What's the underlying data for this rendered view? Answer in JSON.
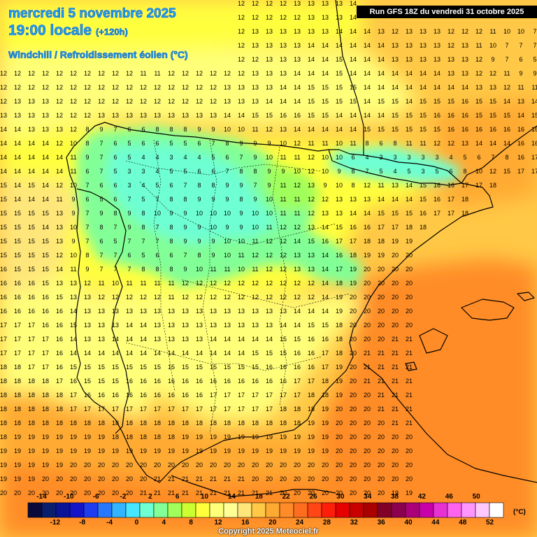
{
  "header": {
    "date": "mercredi 5 novembre 2025",
    "time": "19:00 locale",
    "forecast_horizon": "(+120h)",
    "parameter": "Windchill / Refroidissement éolien (°C)"
  },
  "run_info": "Run GFS 18Z du vendredi 31 octobre 2025",
  "copyright": "Copyright 2025 Meteociel.fr",
  "legend": {
    "unit": "(°C)",
    "top_labels": [
      "-14",
      "-10",
      "-6",
      "-2",
      "2",
      "6",
      "10",
      "14",
      "18",
      "22",
      "26",
      "30",
      "34",
      "38",
      "42",
      "46",
      "50"
    ],
    "bottom_labels": [
      "-12",
      "-8",
      "-4",
      "0",
      "4",
      "8",
      "12",
      "16",
      "20",
      "24",
      "28",
      "32",
      "36",
      "40",
      "44",
      "48",
      "52"
    ],
    "colors": [
      "#0a0a3c",
      "#0a1e6e",
      "#0a1496",
      "#1414c8",
      "#1e3cf0",
      "#2878ff",
      "#32b4ff",
      "#46e6ff",
      "#6effd2",
      "#82ff96",
      "#a0ff5a",
      "#ccff32",
      "#ffff3c",
      "#ffff7a",
      "#ffff96",
      "#ffe67a",
      "#ffc846",
      "#ffaa32",
      "#ff8c28",
      "#ff6e1e",
      "#ff4614",
      "#ff1e0a",
      "#e60000",
      "#c80000",
      "#aa0000",
      "#820028",
      "#8c0050",
      "#aa007a",
      "#c800aa",
      "#e632d2",
      "#ff64f0",
      "#ff96ff",
      "#ffc8ff",
      "#ffffff"
    ]
  },
  "value_rows": [
    "9 9 9 10 10 10 10 11 11 11 10 10 10 10 11 11 12 12 12 12 12 13 13 13 13 14 13 13 14 14 14 13 14 14 13 12 12 12 12 11 11 11 11 13",
    "10 10 10 10 10 10 11 11 11 11 10 10 10 10 11 12 12 12 12 12 12 12 13 13 13 14 14 14 14 12 13 14 14 12 12 11 11 11 9 8 10 9 9",
    "10 10 10 10 11 11 11 11 11 11 11 11 11 11 11 12 12 12 13 13 13 13 13 13 14 14 14 13 12 13 13 13 12 12 12 11 10 10 7 8 7 7",
    "11 11 11 10 11 11 11 11 11 11 11 11 11 11 11 12 12 12 13 13 13 13 14 14 14 14 14 14 13 13 13 13 12 13 11 10 7 7 7 8 7 7",
    "11 11 11 11 11 11 11 12 11 11 11 11 11 11 11 11 12 12 12 13 13 13 14 14 15 14 14 14 13 13 13 13 13 13 12 9 7 6 5 8",
    "12 12 12 12 12 12 12 12 12 12 11 11 12 12 12 12 12 12 13 13 13 14 14 14 15 14 14 14 14 14 14 14 13 13 12 12 11 9 9",
    "12 12 12 12 12 12 12 12 12 12 12 12 12 12 12 12 13 13 13 13 14 14 15 15 15 15 14 14 14 14 14 14 14 14 13 13 12 11 11 12",
    "12 13 13 13 12 12 12 12 12 12 12 12 12 12 12 12 13 13 13 14 14 14 15 15 15 15 14 15 15 14 15 15 15 16 15 15 14 13 14 13",
    "13 13 13 13 12 12 12 13 13 13 13 13 13 13 13 13 14 14 15 15 16 16 15 15 14 14 14 14 15 15 15 16 16 16 15 15 15 14 15 16",
    "14 14 13 13 13 12 8 9 7 6 6 8 8 8 9 9 10 10 11 12 13 14 14 14 14 14 15 15 15 15 15 15 16 16 16 16 16 16 16 17",
    "14 14 14 14 12 10 8 7 6 5 6 6 5 5 6 7 8 9 9 9 10 12 11 11 10 11 8 6 8 11 11 12 12 13 14 14 14 16 16 17",
    "14 14 14 14 14 11 9 7 6 5 4 4 3 4 4 5 6 7 9 10 11 11 12 10 10 6 4 3 3 3 3 3 4 5 6 7 8 16 17",
    "14 14 14 14 14 11 6 7 5 3 3 4 5 5 6 6 7 8 8 9 9 10 12 10 9 8 7 5 4 5 3 5 6 8 10 12 15 17 17",
    "15 14 15 14 12 10 7 6 6 3 4 5 6 7 8 8 9 9 7 9 11 12 13 9 10 8 12 11 13 14 15 16 16 17 17 18",
    "15 14 14 14 11 9 6 5 6 7 5 7 8 8 9 9 9 8 9 10 11 11 12 12 13 13 13 14 14 14 15 16 17 18",
    "15 15 15 15 13 9 7 9 8 9 8 10 9 9 10 10 10 9 10 10 11 11 12 13 13 14 14 15 15 15 16 17 17 18",
    "15 15 15 14 13 10 7 8 7 9 8 7 8 9 9 10 9 9 10 11 12 12 13 14 15 16 16 17 17 18 18",
    "15 15 15 15 13 9 7 6 5 7 7 7 8 9 9 9 10 10 11 12 12 14 15 16 17 17 18 18 19 19",
    "15 15 15 15 12 10 8 7 7 6 5 6 6 7 8 9 10 11 12 12 12 13 13 14 16 18 19 19 20 20",
    "16 15 15 15 14 11 9 7 7 7 8 8 8 9 10 11 11 10 11 12 12 13 13 14 17 19 20 20 20 20",
    "16 16 16 15 13 13 12 11 10 11 11 11 11 12 12 12 12 12 12 12 12 12 12 14 18 19 20 20 20 20",
    "16 16 16 16 15 13 13 12 12 12 12 12 11 12 12 12 12 12 12 12 12 12 12 14 19 20 20 20 20 20",
    "16 16 16 16 16 14 13 13 13 13 13 13 13 13 13 13 13 13 13 13 13 14 14 14 19 20 20 20 20 20",
    "17 17 17 16 16 15 13 13 13 14 14 13 13 13 13 13 13 13 13 13 14 14 15 15 18 20 20 20 20 20",
    "17 17 17 17 16 14 13 13 14 14 14 13 13 13 13 14 14 14 14 14 15 15 16 16 18 20 20 20 21 21",
    "17 17 17 17 16 14 14 14 14 14 14 14 14 14 14 14 14 14 15 15 15 16 16 17 18 20 21 21 21 21",
    "18 18 17 17 16 15 15 15 15 15 15 15 15 15 15 15 15 15 15 16 16 16 16 17 19 20 21 21 21 21",
    "18 18 18 18 17 16 15 15 15 16 16 16 16 16 16 16 16 16 16 16 16 17 17 18 19 20 21 21 21 21",
    "18 18 18 18 18 17 16 16 16 16 16 16 16 16 16 17 17 17 17 17 17 17 18 18 19 20 20 21 21 21",
    "18 18 18 18 18 17 17 17 17 17 17 17 17 17 17 17 17 17 17 17 18 18 18 19 20 20 20 21 21 21",
    "18 18 18 18 18 18 18 18 18 18 18 18 18 18 18 18 18 18 18 18 18 18 19 19 20 20 20 20 21 21",
    "18 19 19 19 19 19 19 19 18 18 18 18 18 19 19 19 19 19 19 19 19 19 19 19 20 20 20 20 20 20",
    "19 19 19 19 19 19 19 19 19 19 19 19 19 19 19 19 19 19 19 19 19 19 19 19 20 20 20 20 20 20",
    "19 19 19 19 19 20 20 20 20 20 20 20 20 20 20 20 20 20 20 20 20 20 20 20 20 20 20 20 20 20",
    "19 19 19 20 20 20 20 20 20 20 20 21 21 21 21 21 21 21 20 20 20 20 20 20 20 20 20 20 20 20",
    "20 20 20 20 20 20 20 20 20 20 21 21 21 21 21 21 21 21 21 21 20 20 20 20 20 20 20 20 19 19",
    "20 20 20 20 20 20 20 20 20 20 21 21 21 21 22 22 22 21 21 21 21 20 20 20 20 19 19 19 18 18",
    "21 21 21 21 21 21 21 21 21 21 21 21 22 22 22 22 22 21 21 21 21 20 20 20 19 19 18 18 18 18"
  ]
}
